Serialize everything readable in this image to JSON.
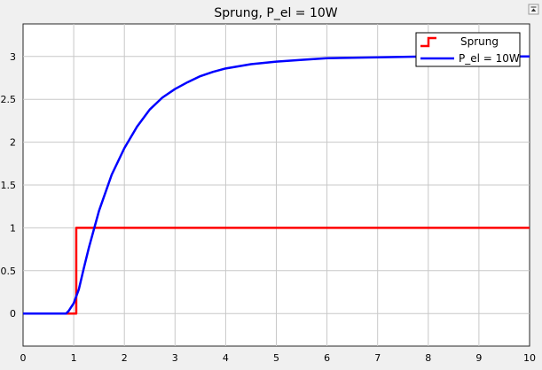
{
  "chart_data": {
    "type": "line",
    "title": "Sprung, P_el = 10W",
    "xlabel": "",
    "ylabel": "",
    "xlim": [
      0,
      10
    ],
    "ylim": [
      -0.38,
      3.38
    ],
    "x_ticks": [
      0,
      1,
      2,
      3,
      4,
      5,
      6,
      7,
      8,
      9,
      10
    ],
    "y_ticks": [
      0,
      0.5,
      1,
      1.5,
      2,
      2.5,
      3
    ],
    "grid": true,
    "legend_position": "top-right",
    "series": [
      {
        "name": "Sprung",
        "color": "#ff0000",
        "x": [
          0,
          1.05,
          1.05,
          10
        ],
        "y": [
          0,
          0,
          1,
          1
        ]
      },
      {
        "name": "P_el = 10W",
        "color": "#0000ff",
        "x": [
          0,
          0.85,
          0.9,
          1.0,
          1.1,
          1.2,
          1.3,
          1.5,
          1.75,
          2.0,
          2.25,
          2.5,
          2.75,
          3.0,
          3.25,
          3.5,
          3.75,
          4.0,
          4.5,
          5.0,
          5.5,
          6.0,
          6.5,
          7.0,
          7.5,
          8.0,
          9.0,
          10.0
        ],
        "y": [
          0,
          0,
          0.03,
          0.12,
          0.28,
          0.53,
          0.77,
          1.2,
          1.62,
          1.93,
          2.18,
          2.38,
          2.52,
          2.62,
          2.7,
          2.77,
          2.82,
          2.86,
          2.91,
          2.94,
          2.96,
          2.98,
          2.985,
          2.99,
          2.995,
          3.0,
          3.0,
          3.0
        ]
      }
    ]
  },
  "toolbar": {
    "undock_icon": "undock-icon"
  }
}
